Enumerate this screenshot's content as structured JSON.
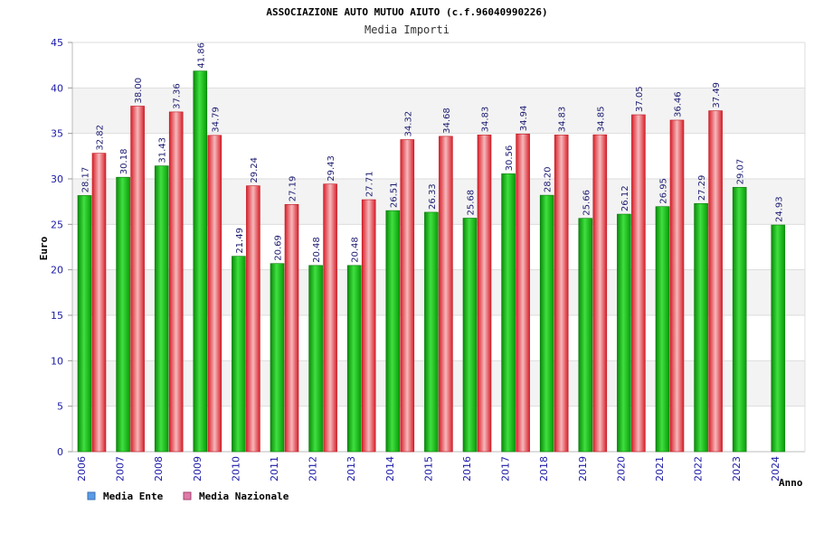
{
  "chart_data": {
    "type": "bar",
    "title": "ASSOCIAZIONE AUTO MUTUO AIUTO (c.f.96040990226)",
    "subtitle": "Media Importi",
    "xlabel": "Anno",
    "ylabel": "Euro",
    "ylim": [
      0,
      45
    ],
    "yticks": [
      0,
      5,
      10,
      15,
      20,
      25,
      30,
      35,
      40,
      45
    ],
    "grid": true,
    "legend_position": "bottom-left",
    "categories": [
      "2006",
      "2007",
      "2008",
      "2009",
      "2010",
      "2011",
      "2012",
      "2013",
      "2014",
      "2015",
      "2016",
      "2017",
      "2018",
      "2019",
      "2020",
      "2021",
      "2022",
      "2023",
      "2024"
    ],
    "series": [
      {
        "name": "Media Ente",
        "color": "#19b419",
        "legend_color": "#5b9be6",
        "values": [
          28.17,
          30.18,
          31.43,
          41.86,
          21.49,
          20.69,
          20.48,
          20.48,
          26.51,
          26.33,
          25.68,
          30.56,
          28.2,
          25.66,
          26.12,
          26.95,
          27.29,
          29.07,
          24.93
        ],
        "labels": [
          "28.17",
          "30.18",
          "31.43",
          "41.86",
          "21.49",
          "20.69",
          "20.48",
          "20.48",
          "26.51",
          "26.33",
          "25.68",
          "30.56",
          "28.20",
          "25.66",
          "26.12",
          "26.95",
          "27.29",
          "29.07",
          "24.93"
        ]
      },
      {
        "name": "Media Nazionale",
        "color": "#e8343c",
        "legend_color": "#e07aa8",
        "values": [
          32.82,
          38.0,
          37.36,
          34.79,
          29.24,
          27.19,
          29.43,
          27.71,
          34.32,
          34.68,
          34.83,
          34.94,
          34.83,
          34.85,
          37.05,
          36.46,
          37.49,
          null,
          null
        ],
        "labels": [
          "32.82",
          "38.00",
          "37.36",
          "34.79",
          "29.24",
          "27.19",
          "29.43",
          "27.71",
          "34.32",
          "34.68",
          "34.83",
          "34.94",
          "34.83",
          "34.85",
          "37.05",
          "36.46",
          "37.49",
          "",
          ""
        ]
      }
    ]
  }
}
